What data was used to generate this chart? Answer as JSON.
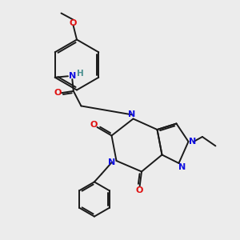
{
  "bg_color": "#ececec",
  "bond_color": "#1a1a1a",
  "N_color": "#1010e0",
  "O_color": "#e01010",
  "H_color": "#4a9090",
  "lw": 1.4,
  "fs": 7.5,
  "figsize": [
    3.0,
    3.0
  ],
  "dpi": 100,
  "xlim": [
    0,
    10
  ],
  "ylim": [
    0,
    10
  ]
}
